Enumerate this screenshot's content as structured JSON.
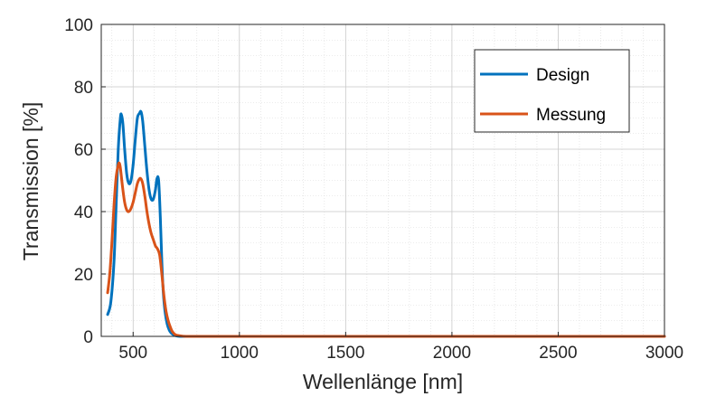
{
  "chart_data": {
    "type": "line",
    "title": "",
    "xlabel": "Wellenlänge [nm]",
    "ylabel": "Transmission [%]",
    "xlim": [
      350,
      3000
    ],
    "ylim": [
      0,
      100
    ],
    "x_ticks": [
      500,
      1000,
      1500,
      2000,
      2500,
      3000
    ],
    "y_ticks": [
      0,
      20,
      40,
      60,
      80,
      100
    ],
    "x_tick_labels": [
      "500",
      "1000",
      "1500",
      "2000",
      "2500",
      "3000"
    ],
    "y_tick_labels": [
      "0",
      "20",
      "40",
      "60",
      "80",
      "100"
    ],
    "grid": "on (major and minor)",
    "legend_position": "top-right",
    "series": [
      {
        "name": "Design",
        "color": "#0072BD",
        "x": [
          380,
          395,
          410,
          420,
          430,
          440,
          445,
          452,
          460,
          470,
          480,
          490,
          500,
          510,
          520,
          530,
          537,
          545,
          555,
          565,
          575,
          585,
          595,
          605,
          612,
          620,
          628,
          635,
          642,
          650,
          660,
          670,
          680,
          690,
          700,
          720,
          750,
          800,
          900,
          1000,
          1500,
          2000,
          2500,
          3000
        ],
        "values": [
          7,
          11,
          24,
          42,
          60,
          70,
          71,
          68,
          60,
          52,
          49,
          50,
          55,
          63,
          70,
          71.5,
          72,
          69,
          61,
          53,
          47,
          44,
          44,
          47,
          50.5,
          50,
          38,
          24,
          14,
          8,
          4,
          2,
          1,
          0.5,
          0.2,
          0,
          0,
          0,
          0,
          0,
          0,
          0,
          0,
          0
        ]
      },
      {
        "name": "Messung",
        "color": "#D95319",
        "x": [
          380,
          390,
          400,
          410,
          420,
          430,
          435,
          440,
          450,
          460,
          470,
          480,
          490,
          500,
          510,
          520,
          530,
          537,
          545,
          555,
          565,
          575,
          585,
          595,
          605,
          615,
          625,
          635,
          645,
          655,
          665,
          675,
          685,
          700,
          720,
          750,
          800,
          900,
          1000,
          1500,
          2000,
          2500,
          3000
        ],
        "values": [
          14,
          20,
          30,
          42,
          51,
          55,
          55.5,
          54,
          48,
          43,
          40.5,
          40,
          41,
          43,
          46,
          49,
          50.5,
          50.5,
          49,
          45,
          40,
          36,
          33,
          31,
          29,
          28,
          26,
          20,
          13,
          8,
          5,
          3,
          1.5,
          0.5,
          0.2,
          0,
          0,
          0,
          0,
          0,
          0,
          0,
          0
        ]
      }
    ]
  }
}
